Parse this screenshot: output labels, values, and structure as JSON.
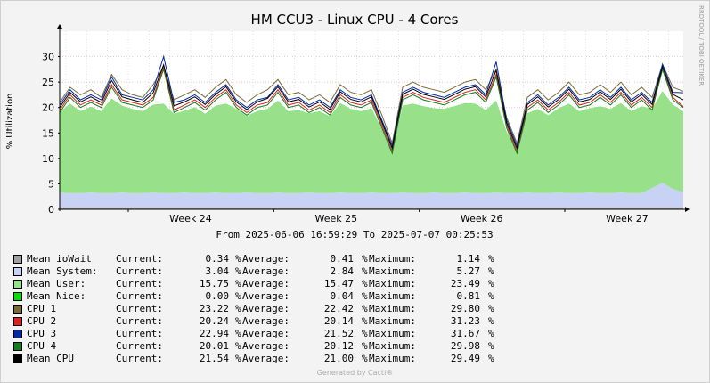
{
  "chart_data": {
    "type": "area",
    "title": "HM CCU3 - Linux CPU - 4 Cores",
    "ylabel": "% Utilization",
    "watermark": "RRDTOOL / TOBI OETIKER",
    "ylim": [
      0,
      35
    ],
    "yticks": [
      0,
      5,
      10,
      15,
      20,
      25,
      30
    ],
    "xticks": [
      "Week 24",
      "Week 25",
      "Week 26",
      "Week 27"
    ],
    "range_text": "From 2025-06-06 16:59:29 To 2025-07-07 00:25:53",
    "grid": true,
    "colors": {
      "iowait": "#a0a0a0",
      "system": "#c8d2f4",
      "user": "#98e08a",
      "nice": "#00e000",
      "cpu1": "#7a6a38",
      "cpu2": "#e02020",
      "cpu3": "#0028a8",
      "cpu4": "#137c1e",
      "mean": "#000000"
    },
    "x_day_offsets": [
      0,
      0.5,
      1,
      1.5,
      2,
      2.5,
      3,
      3.5,
      4,
      4.5,
      5,
      5.5,
      6,
      6.5,
      7,
      7.5,
      8,
      8.5,
      9,
      9.5,
      10,
      10.5,
      11,
      11.5,
      12,
      12.5,
      13,
      13.5,
      14,
      14.5,
      15,
      15.5,
      16,
      16.5,
      17,
      17.5,
      18,
      18.5,
      19,
      19.5,
      20,
      20.5,
      21,
      21.5,
      22,
      22.5,
      23,
      23.5,
      24,
      24.5,
      25,
      25.5,
      26,
      26.5,
      27,
      27.5,
      28,
      28.5,
      29,
      29.5,
      30
    ],
    "series": [
      {
        "name": "Mean ioWait",
        "values": [
          0.4,
          0.4,
          0.4,
          0.4,
          0.4,
          0.4,
          0.4,
          0.4,
          0.4,
          0.4,
          0.4,
          0.4,
          0.4,
          0.4,
          0.4,
          0.4,
          0.4,
          0.4,
          0.4,
          0.4,
          0.4,
          0.4,
          0.4,
          0.4,
          0.4,
          0.4,
          0.4,
          0.4,
          0.4,
          0.4,
          0.4,
          0.4,
          0.4,
          0.4,
          0.4,
          0.4,
          0.4,
          0.4,
          0.4,
          0.4,
          0.4,
          0.4,
          0.4,
          0.4,
          0.4,
          0.4,
          0.4,
          0.4,
          0.4,
          0.4,
          0.4,
          0.4,
          0.4,
          0.4,
          0.4,
          0.4,
          0.4,
          0.4,
          0.4,
          0.4,
          0.4
        ]
      },
      {
        "name": "Mean System",
        "values": [
          2.9,
          2.8,
          2.8,
          2.9,
          2.8,
          2.8,
          2.9,
          2.8,
          2.8,
          2.9,
          2.8,
          2.8,
          2.9,
          2.8,
          2.8,
          2.9,
          2.8,
          2.8,
          2.9,
          2.8,
          2.8,
          2.9,
          2.8,
          2.8,
          2.9,
          2.8,
          2.8,
          2.9,
          2.8,
          2.8,
          2.9,
          2.8,
          2.8,
          2.9,
          2.8,
          2.8,
          2.9,
          2.8,
          2.8,
          2.9,
          2.8,
          2.8,
          2.9,
          2.8,
          2.8,
          2.9,
          2.8,
          2.8,
          2.9,
          2.8,
          2.8,
          2.9,
          2.8,
          2.8,
          2.9,
          2.8,
          2.8,
          3.8,
          4.8,
          3.6,
          3.0
        ]
      },
      {
        "name": "Mean User",
        "values": [
          15.8,
          17.5,
          16.0,
          16.8,
          16.0,
          18.5,
          17.0,
          16.5,
          16.0,
          17.2,
          17.5,
          15.5,
          16.0,
          16.8,
          15.5,
          17.0,
          17.5,
          16.5,
          15.0,
          16.0,
          16.5,
          18.0,
          16.0,
          16.2,
          15.5,
          16.0,
          15.0,
          17.5,
          16.5,
          16.0,
          16.5,
          12.5,
          8.0,
          17.0,
          17.5,
          17.0,
          16.5,
          16.5,
          17.0,
          17.5,
          17.5,
          16.2,
          18.0,
          12.0,
          8.5,
          15.5,
          16.5,
          15.2,
          16.5,
          17.5,
          16.0,
          16.5,
          17.0,
          16.5,
          17.5,
          16.0,
          17.0,
          15.5,
          18.0,
          16.5,
          15.8
        ]
      },
      {
        "name": "Mean Nice",
        "values": [
          0.04,
          0.04,
          0.04,
          0.04,
          0.04,
          0.04,
          0.04,
          0.04,
          0.04,
          0.04,
          0.04,
          0.04,
          0.04,
          0.04,
          0.04,
          0.04,
          0.04,
          0.04,
          0.04,
          0.04,
          0.04,
          0.04,
          0.04,
          0.04,
          0.04,
          0.04,
          0.04,
          0.04,
          0.04,
          0.04,
          0.04,
          0.04,
          0.04,
          0.04,
          0.04,
          0.04,
          0.04,
          0.04,
          0.04,
          0.04,
          0.04,
          0.04,
          0.04,
          0.04,
          0.04,
          0.04,
          0.04,
          0.04,
          0.04,
          0.04,
          0.04,
          0.04,
          0.04,
          0.04,
          0.04,
          0.04,
          0.04,
          0.04,
          0.04,
          0.04,
          0.04
        ]
      },
      {
        "name": "CPU 1",
        "values": [
          21.0,
          24.0,
          22.5,
          23.5,
          22.0,
          26.5,
          23.5,
          22.5,
          22.0,
          24.5,
          28.0,
          21.5,
          22.5,
          23.5,
          22.0,
          24.0,
          25.5,
          22.5,
          21.0,
          22.5,
          23.5,
          25.5,
          22.5,
          23.0,
          21.5,
          22.5,
          21.0,
          24.5,
          23.0,
          22.5,
          23.5,
          18.5,
          13.0,
          24.0,
          25.0,
          24.0,
          23.5,
          23.0,
          24.0,
          25.0,
          25.5,
          23.5,
          27.5,
          18.0,
          13.0,
          22.0,
          23.5,
          21.5,
          23.0,
          25.0,
          22.5,
          23.0,
          24.5,
          23.0,
          25.0,
          22.5,
          24.0,
          22.0,
          28.5,
          24.0,
          23.2
        ]
      },
      {
        "name": "CPU 2",
        "values": [
          19.5,
          22.5,
          20.5,
          21.5,
          20.5,
          24.5,
          21.5,
          21.0,
          20.5,
          22.0,
          28.0,
          19.5,
          20.5,
          21.5,
          20.0,
          22.0,
          23.5,
          20.5,
          19.0,
          20.5,
          21.0,
          23.5,
          20.5,
          21.0,
          19.5,
          20.5,
          19.0,
          22.5,
          21.0,
          20.5,
          21.5,
          16.5,
          11.5,
          22.0,
          23.0,
          22.0,
          21.5,
          21.0,
          22.0,
          23.0,
          23.5,
          21.5,
          26.5,
          16.5,
          11.5,
          20.0,
          21.5,
          19.5,
          21.0,
          23.0,
          20.5,
          21.0,
          22.5,
          21.0,
          23.0,
          20.5,
          22.0,
          20.0,
          27.5,
          22.0,
          20.2
        ]
      },
      {
        "name": "CPU 3",
        "values": [
          20.5,
          23.5,
          21.5,
          22.5,
          21.5,
          26.0,
          22.5,
          22.0,
          21.5,
          23.5,
          30.0,
          21.0,
          21.5,
          22.5,
          21.0,
          23.0,
          24.5,
          21.5,
          20.0,
          21.5,
          22.0,
          24.5,
          21.5,
          22.0,
          20.5,
          21.5,
          20.0,
          23.5,
          22.0,
          21.5,
          22.5,
          17.5,
          12.5,
          23.0,
          24.0,
          23.0,
          22.5,
          22.0,
          23.0,
          24.0,
          24.5,
          22.5,
          29.0,
          17.5,
          12.5,
          21.0,
          22.5,
          20.5,
          22.0,
          24.0,
          21.5,
          22.0,
          23.5,
          22.0,
          24.0,
          21.5,
          23.0,
          21.0,
          28.5,
          23.0,
          22.9
        ]
      },
      {
        "name": "CPU 4",
        "values": [
          19.0,
          22.0,
          20.0,
          21.0,
          20.0,
          24.0,
          21.0,
          20.5,
          20.0,
          21.5,
          27.5,
          19.0,
          20.0,
          21.0,
          19.5,
          21.5,
          23.0,
          20.0,
          18.5,
          20.0,
          20.5,
          23.0,
          20.0,
          20.5,
          19.0,
          20.0,
          18.5,
          22.0,
          20.5,
          20.0,
          21.0,
          16.0,
          11.0,
          21.5,
          22.5,
          21.5,
          21.0,
          20.5,
          21.5,
          22.5,
          23.0,
          21.0,
          26.0,
          16.0,
          11.0,
          19.5,
          21.0,
          19.0,
          20.5,
          22.5,
          20.0,
          20.5,
          22.0,
          20.5,
          22.5,
          20.0,
          21.5,
          19.5,
          27.5,
          21.5,
          20.0
        ]
      },
      {
        "name": "Mean CPU",
        "values": [
          20.0,
          23.0,
          21.1,
          22.1,
          21.0,
          25.3,
          22.1,
          21.5,
          21.0,
          22.9,
          28.4,
          20.3,
          21.1,
          22.1,
          20.6,
          22.6,
          24.1,
          21.1,
          19.6,
          21.1,
          21.8,
          24.1,
          21.1,
          21.6,
          20.1,
          21.1,
          19.6,
          23.1,
          21.6,
          21.1,
          22.1,
          17.1,
          12.0,
          22.6,
          23.6,
          22.6,
          22.1,
          21.6,
          22.6,
          23.6,
          24.1,
          22.1,
          27.3,
          17.0,
          12.0,
          20.6,
          22.1,
          20.1,
          21.6,
          23.6,
          21.1,
          21.6,
          23.1,
          21.6,
          23.6,
          21.1,
          22.6,
          20.6,
          28.0,
          22.6,
          21.5
        ]
      }
    ]
  },
  "legend": [
    {
      "label": "Mean ioWait",
      "color": "#a0a0a0",
      "current_label": "Current:",
      "current": "0.34",
      "average_label": "Average:",
      "average": "0.41",
      "maximum_label": "Maximum:",
      "maximum": "1.14",
      "unit": "%"
    },
    {
      "label": "Mean System:",
      "color": "#c8d2f4",
      "current_label": "Current:",
      "current": "3.04",
      "average_label": "Average:",
      "average": "2.84",
      "maximum_label": "Maximum:",
      "maximum": "5.27",
      "unit": "%"
    },
    {
      "label": "Mean User:",
      "color": "#98e08a",
      "current_label": "Current:",
      "current": "15.75",
      "average_label": "Average:",
      "average": "15.47",
      "maximum_label": "Maximum:",
      "maximum": "23.49",
      "unit": "%"
    },
    {
      "label": "Mean Nice:",
      "color": "#00e000",
      "current_label": "Current:",
      "current": "0.00",
      "average_label": "Average:",
      "average": "0.04",
      "maximum_label": "Maximum:",
      "maximum": "0.81",
      "unit": "%"
    },
    {
      "label": "CPU 1",
      "color": "#7a6a38",
      "current_label": "Current:",
      "current": "23.22",
      "average_label": "Average:",
      "average": "22.42",
      "maximum_label": "Maximum:",
      "maximum": "29.80",
      "unit": "%"
    },
    {
      "label": "CPU 2",
      "color": "#e02020",
      "current_label": "Current:",
      "current": "20.24",
      "average_label": "Average:",
      "average": "20.14",
      "maximum_label": "Maximum:",
      "maximum": "31.23",
      "unit": "%"
    },
    {
      "label": "CPU 3",
      "color": "#0028a8",
      "current_label": "Current:",
      "current": "22.94",
      "average_label": "Average:",
      "average": "21.52",
      "maximum_label": "Maximum:",
      "maximum": "31.67",
      "unit": "%"
    },
    {
      "label": "CPU 4",
      "color": "#137c1e",
      "current_label": "Current:",
      "current": "20.01",
      "average_label": "Average:",
      "average": "20.12",
      "maximum_label": "Maximum:",
      "maximum": "29.98",
      "unit": "%"
    },
    {
      "label": "Mean CPU",
      "color": "#000000",
      "current_label": "Current:",
      "current": "21.54",
      "average_label": "Average:",
      "average": "21.00",
      "maximum_label": "Maximum:",
      "maximum": "29.49",
      "unit": "%"
    }
  ],
  "footer": "Generated by Cacti®"
}
